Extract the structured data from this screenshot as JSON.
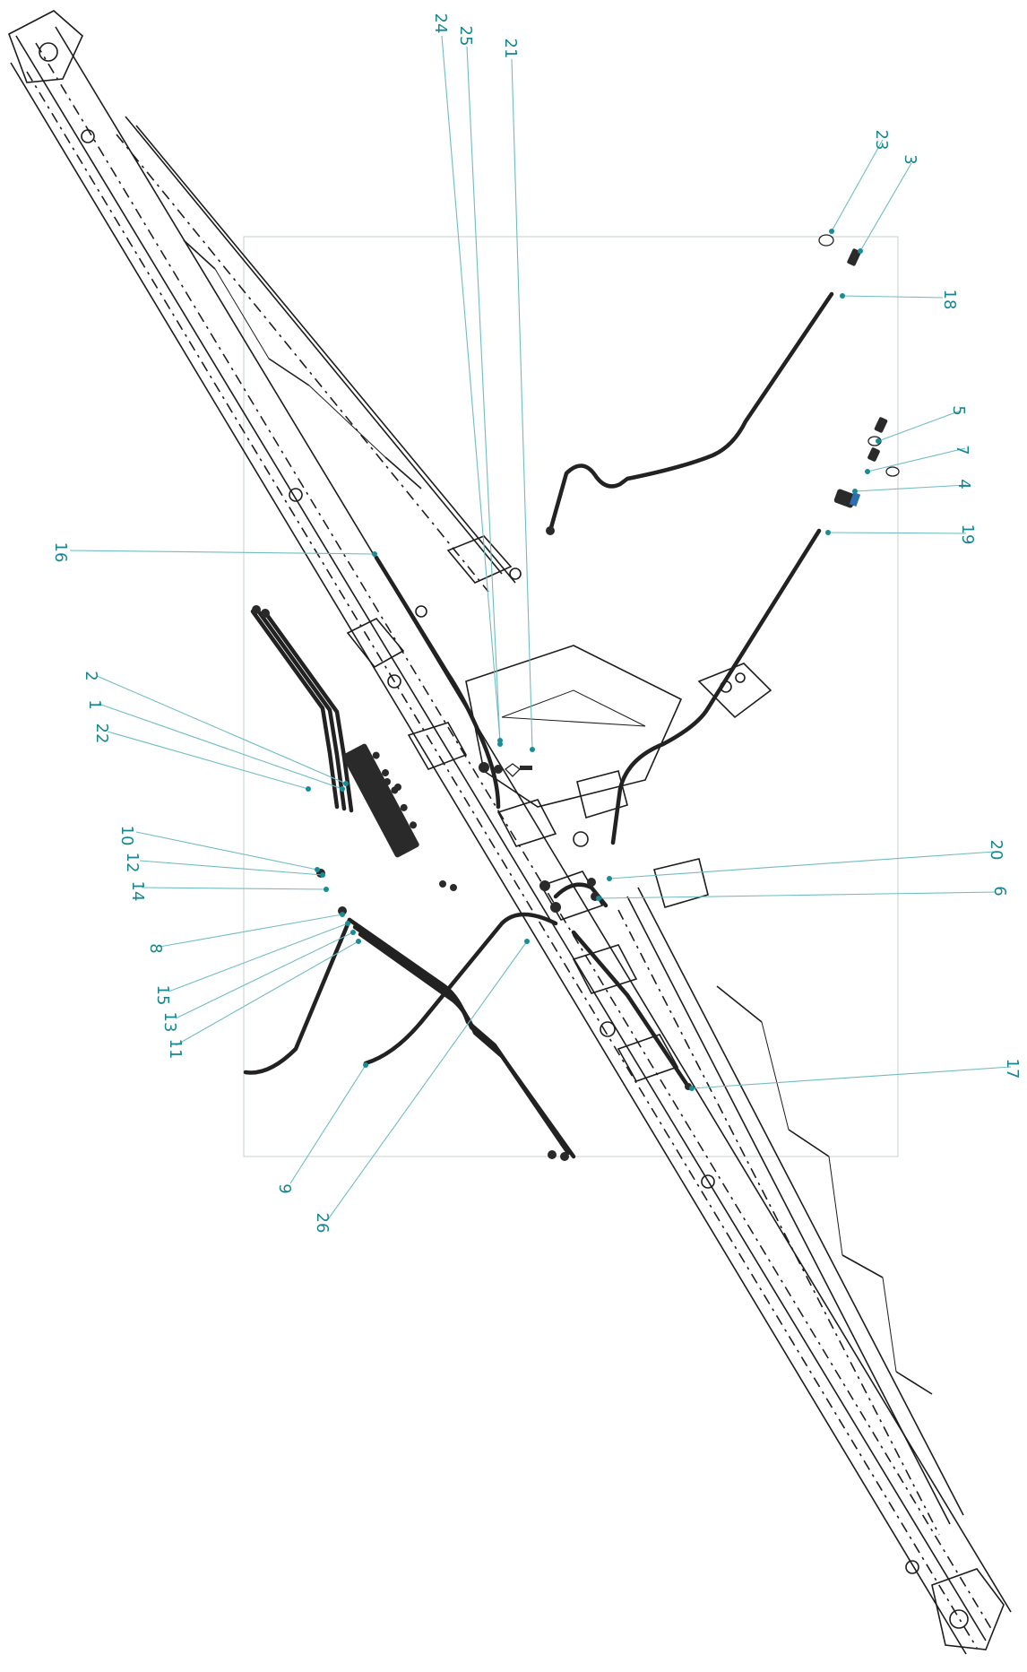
{
  "colors": {
    "callout": "#17868f",
    "leader": "#6fbcc2",
    "linework": "#1d1d1d",
    "outline_box": "#c6cfd1",
    "coupler_accent": "#2e6fb0"
  },
  "callouts": [
    {
      "id": "c24",
      "label": "24"
    },
    {
      "id": "c25",
      "label": "25"
    },
    {
      "id": "c21",
      "label": "21"
    },
    {
      "id": "c23",
      "label": "23"
    },
    {
      "id": "c3",
      "label": "3"
    },
    {
      "id": "c18",
      "label": "18"
    },
    {
      "id": "c5",
      "label": "5"
    },
    {
      "id": "c7",
      "label": "7"
    },
    {
      "id": "c4",
      "label": "4"
    },
    {
      "id": "c19",
      "label": "19"
    },
    {
      "id": "c16",
      "label": "16"
    },
    {
      "id": "c2",
      "label": "2"
    },
    {
      "id": "c1",
      "label": "1"
    },
    {
      "id": "c22",
      "label": "22"
    },
    {
      "id": "c10",
      "label": "10"
    },
    {
      "id": "c12",
      "label": "12"
    },
    {
      "id": "c14",
      "label": "14"
    },
    {
      "id": "c8",
      "label": "8"
    },
    {
      "id": "c15",
      "label": "15"
    },
    {
      "id": "c13",
      "label": "13"
    },
    {
      "id": "c11",
      "label": "11"
    },
    {
      "id": "c20",
      "label": "20"
    },
    {
      "id": "c6",
      "label": "6"
    },
    {
      "id": "c17",
      "label": "17"
    },
    {
      "id": "c9",
      "label": "9"
    },
    {
      "id": "c26",
      "label": "26"
    }
  ]
}
